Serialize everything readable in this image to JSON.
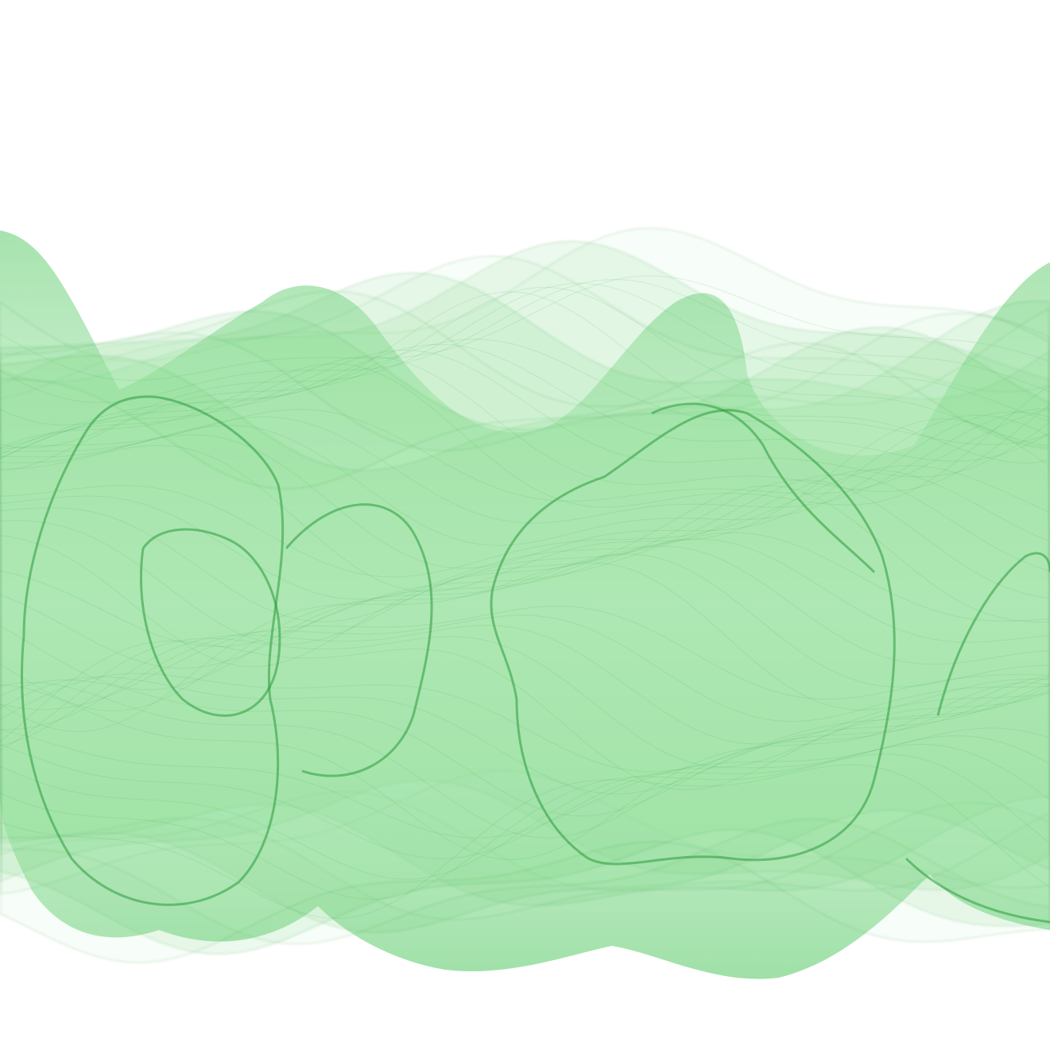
{
  "image": {
    "subject": "translucent-green-ribbon-waves",
    "colors": {
      "background": "#ffffff",
      "ribbon_light": "#bfeec7",
      "ribbon_mid": "#5fcc6c",
      "ribbon_dark": "#2a9a3a"
    }
  }
}
